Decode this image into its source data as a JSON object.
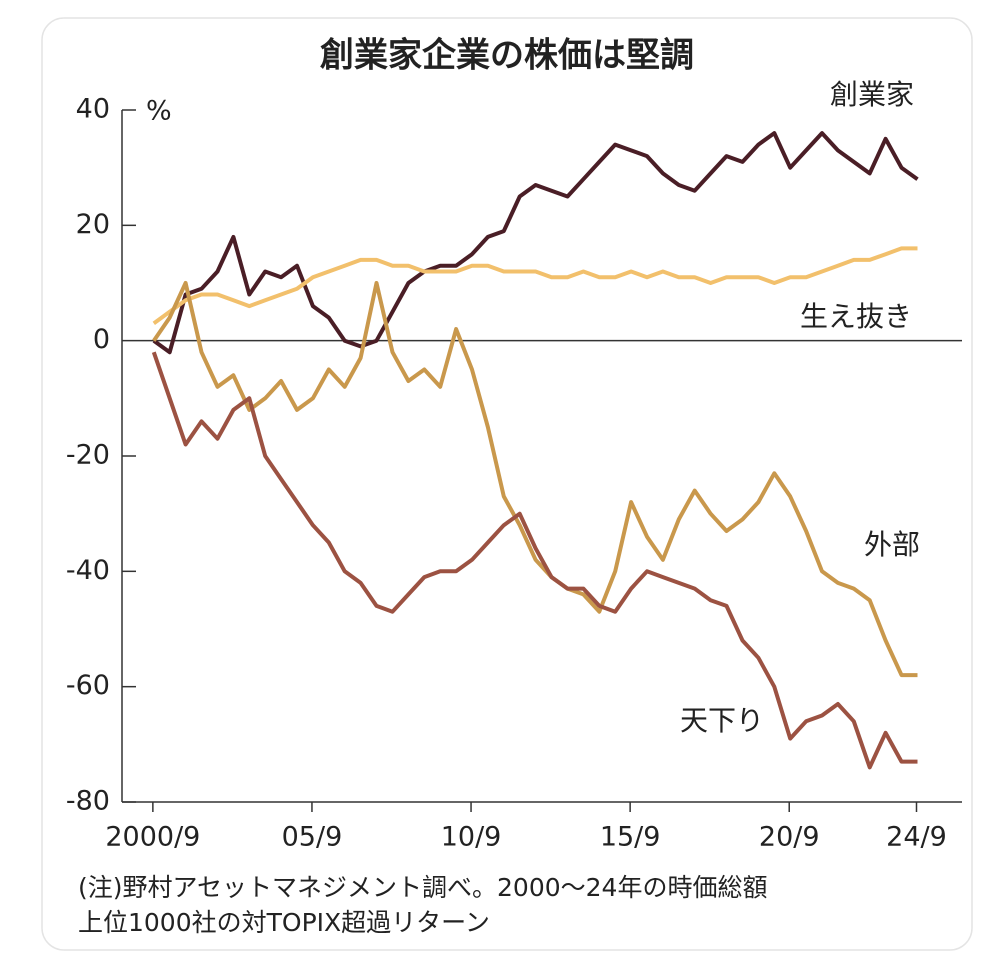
{
  "chart_data": {
    "type": "line",
    "title": "創業家企業の株価は堅調",
    "y_unit": "%",
    "note_lines": [
      "(注)野村アセットマネジメント調べ。2000～24年の時価総額",
      "上位1000社の対TOPIX超過リターン"
    ],
    "x": [
      2000.7,
      2001.2,
      2001.7,
      2002.2,
      2002.7,
      2003.2,
      2003.7,
      2004.2,
      2004.7,
      2005.2,
      2005.7,
      2006.2,
      2006.7,
      2007.2,
      2007.7,
      2008.2,
      2008.7,
      2009.2,
      2009.7,
      2010.2,
      2010.7,
      2011.2,
      2011.7,
      2012.2,
      2012.7,
      2013.2,
      2013.7,
      2014.2,
      2014.7,
      2015.2,
      2015.7,
      2016.2,
      2016.7,
      2017.2,
      2017.7,
      2018.2,
      2018.7,
      2019.2,
      2019.7,
      2020.2,
      2020.7,
      2021.2,
      2021.7,
      2022.2,
      2022.7,
      2023.2,
      2023.7,
      2024.2,
      2024.7
    ],
    "series": [
      {
        "name": "創業家",
        "color": "#4a1e26",
        "values": [
          0,
          -2,
          8,
          9,
          12,
          18,
          8,
          12,
          11,
          13,
          6,
          4,
          0,
          -1,
          0,
          5,
          10,
          12,
          13,
          13,
          15,
          18,
          19,
          25,
          27,
          26,
          25,
          28,
          31,
          34,
          33,
          32,
          29,
          27,
          26,
          29,
          32,
          31,
          34,
          36,
          30,
          33,
          36,
          33,
          31,
          29,
          35,
          30,
          28
        ]
      },
      {
        "name": "生え抜き",
        "color": "#f2c06c",
        "values": [
          3,
          5,
          7,
          8,
          8,
          7,
          6,
          7,
          8,
          9,
          11,
          12,
          13,
          14,
          14,
          13,
          13,
          12,
          12,
          12,
          13,
          13,
          12,
          12,
          12,
          11,
          11,
          12,
          11,
          11,
          12,
          11,
          12,
          11,
          11,
          10,
          11,
          11,
          11,
          10,
          11,
          11,
          12,
          13,
          14,
          14,
          15,
          16,
          16
        ]
      },
      {
        "name": "外部",
        "color": "#c9984c",
        "values": [
          0,
          4,
          10,
          -2,
          -8,
          -6,
          -12,
          -10,
          -7,
          -12,
          -10,
          -5,
          -8,
          -3,
          10,
          -2,
          -7,
          -5,
          -8,
          2,
          -5,
          -15,
          -27,
          -32,
          -38,
          -41,
          -43,
          -44,
          -47,
          -40,
          -28,
          -34,
          -38,
          -31,
          -26,
          -30,
          -33,
          -31,
          -28,
          -23,
          -27,
          -33,
          -40,
          -42,
          -43,
          -45,
          -52,
          -58,
          -58
        ]
      },
      {
        "name": "天下り",
        "color": "#9c5242",
        "values": [
          -2,
          -10,
          -18,
          -14,
          -17,
          -12,
          -10,
          -20,
          -24,
          -28,
          -32,
          -35,
          -40,
          -42,
          -46,
          -47,
          -44,
          -41,
          -40,
          -40,
          -38,
          -35,
          -32,
          -30,
          -36,
          -41,
          -43,
          -43,
          -46,
          -47,
          -43,
          -40,
          -41,
          -42,
          -43,
          -45,
          -46,
          -52,
          -55,
          -60,
          -69,
          -66,
          -65,
          -63,
          -66,
          -74,
          -68,
          -73,
          -73
        ]
      }
    ],
    "xlim": [
      1999.7,
      2026.1
    ],
    "xticks": [
      {
        "value": 2000.67,
        "label": "2000/9"
      },
      {
        "value": 2005.67,
        "label": "05/9"
      },
      {
        "value": 2010.67,
        "label": "10/9"
      },
      {
        "value": 2015.67,
        "label": "15/9"
      },
      {
        "value": 2020.67,
        "label": "20/9"
      },
      {
        "value": 2024.67,
        "label": "24/9"
      }
    ],
    "ylim": [
      -80,
      40
    ],
    "yticks": [
      40,
      20,
      0,
      -20,
      -40,
      -60,
      -80
    ],
    "zero_line": true
  }
}
